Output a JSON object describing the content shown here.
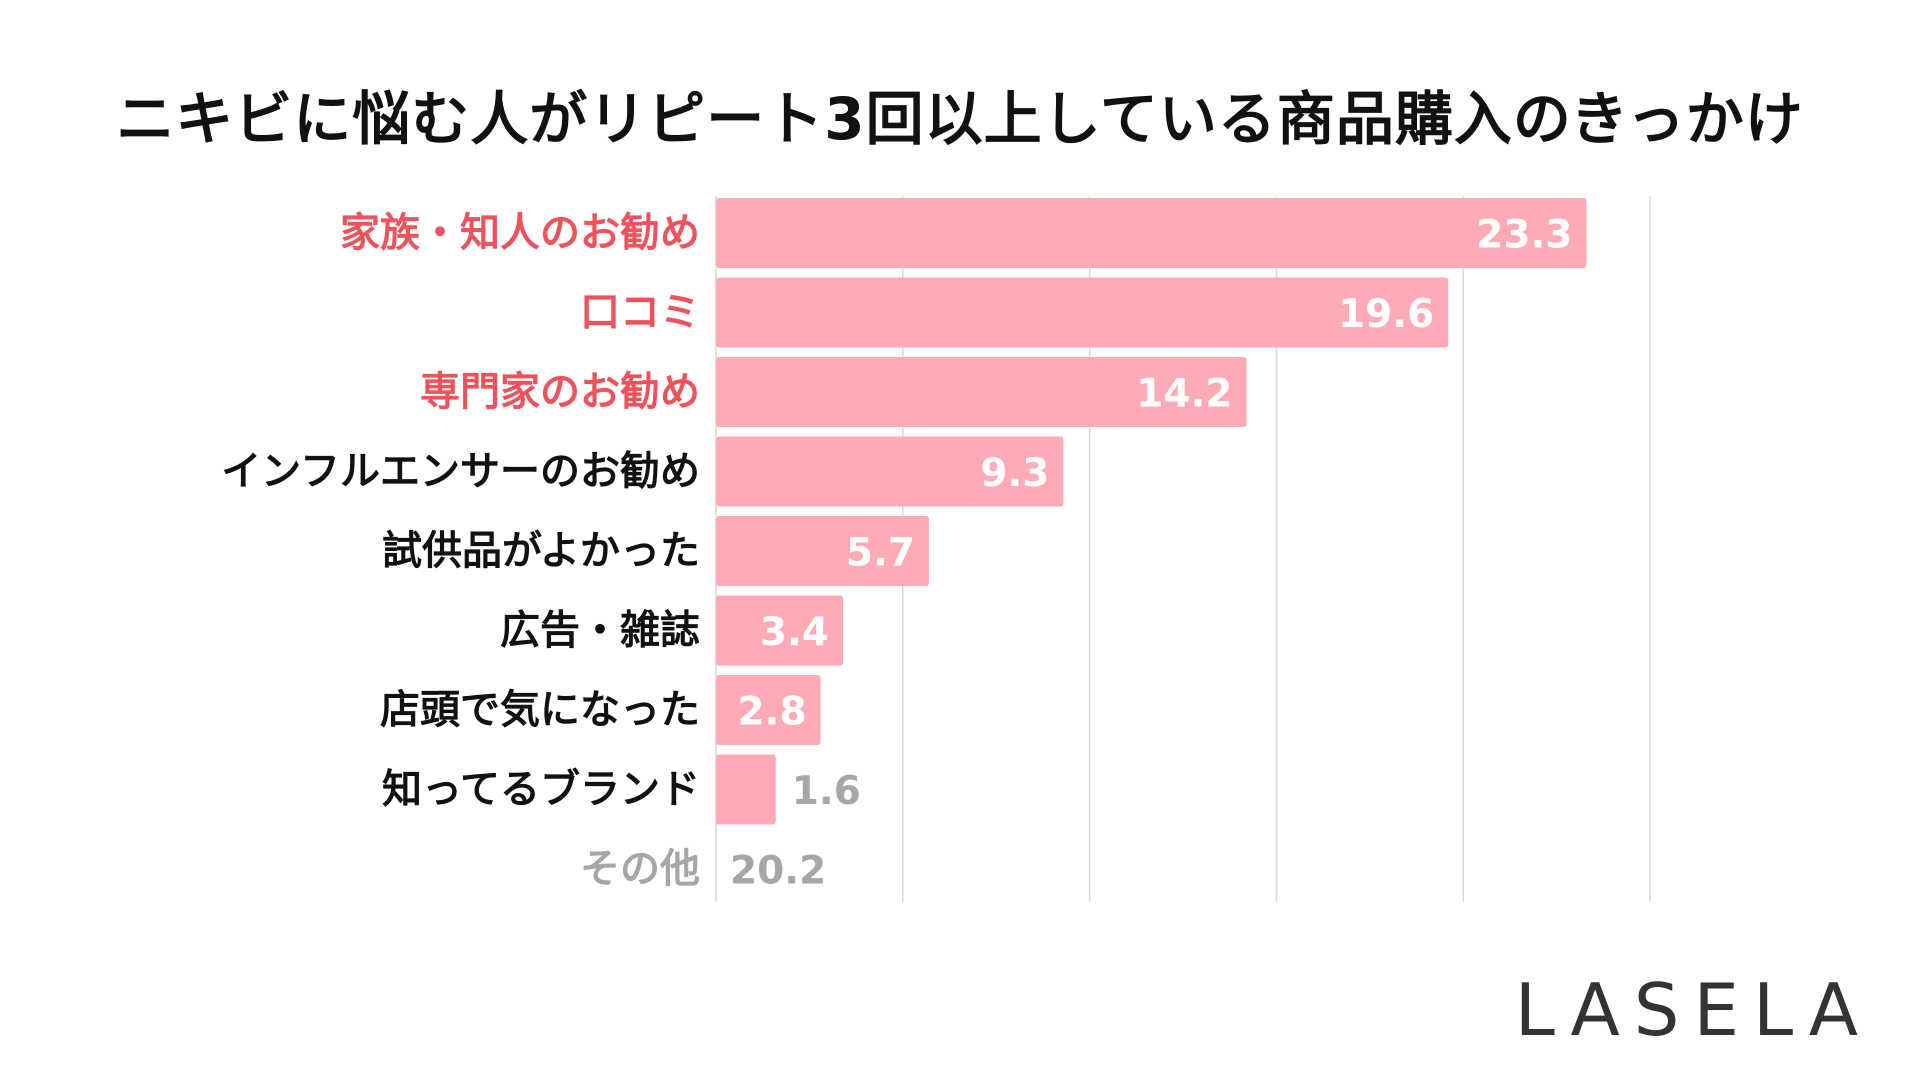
{
  "chart_data": {
    "type": "bar",
    "orientation": "horizontal",
    "title": "ニキビに悩む人がリピート3回以上している商品購入のきっかけ",
    "categories": [
      "家族・知人のお勧め",
      "口コミ",
      "専門家のお勧め",
      "インフルエンサーのお勧め",
      "試供品がよかった",
      "広告・雑誌",
      "店頭で気になった",
      "知ってるブランド",
      "その他"
    ],
    "values": [
      23.3,
      19.6,
      14.2,
      9.3,
      5.7,
      3.4,
      2.8,
      1.6,
      20.2
    ],
    "value_labels": [
      "23.3",
      "19.6",
      "14.2",
      "9.3",
      "5.7",
      "3.4",
      "2.8",
      "1.6",
      "20.2"
    ],
    "bar_drawn": [
      true,
      true,
      true,
      true,
      true,
      true,
      true,
      true,
      false
    ],
    "highlighted": [
      true,
      true,
      true,
      false,
      false,
      false,
      false,
      false,
      false
    ],
    "xlim": [
      0,
      25
    ],
    "gridlines": [
      0,
      5,
      10,
      15,
      20,
      25
    ],
    "grid": true,
    "legend": "none",
    "colors": {
      "bar": "#ffaab4",
      "highlight_label": "#f0525c",
      "normal_label": "#111111",
      "muted_label": "#a6a6a6",
      "value_inside": "#ffffff",
      "value_outside": "#a6a6a6",
      "grid": "#d9d9d9"
    }
  },
  "brand": {
    "logo_text": "LASELA"
  }
}
